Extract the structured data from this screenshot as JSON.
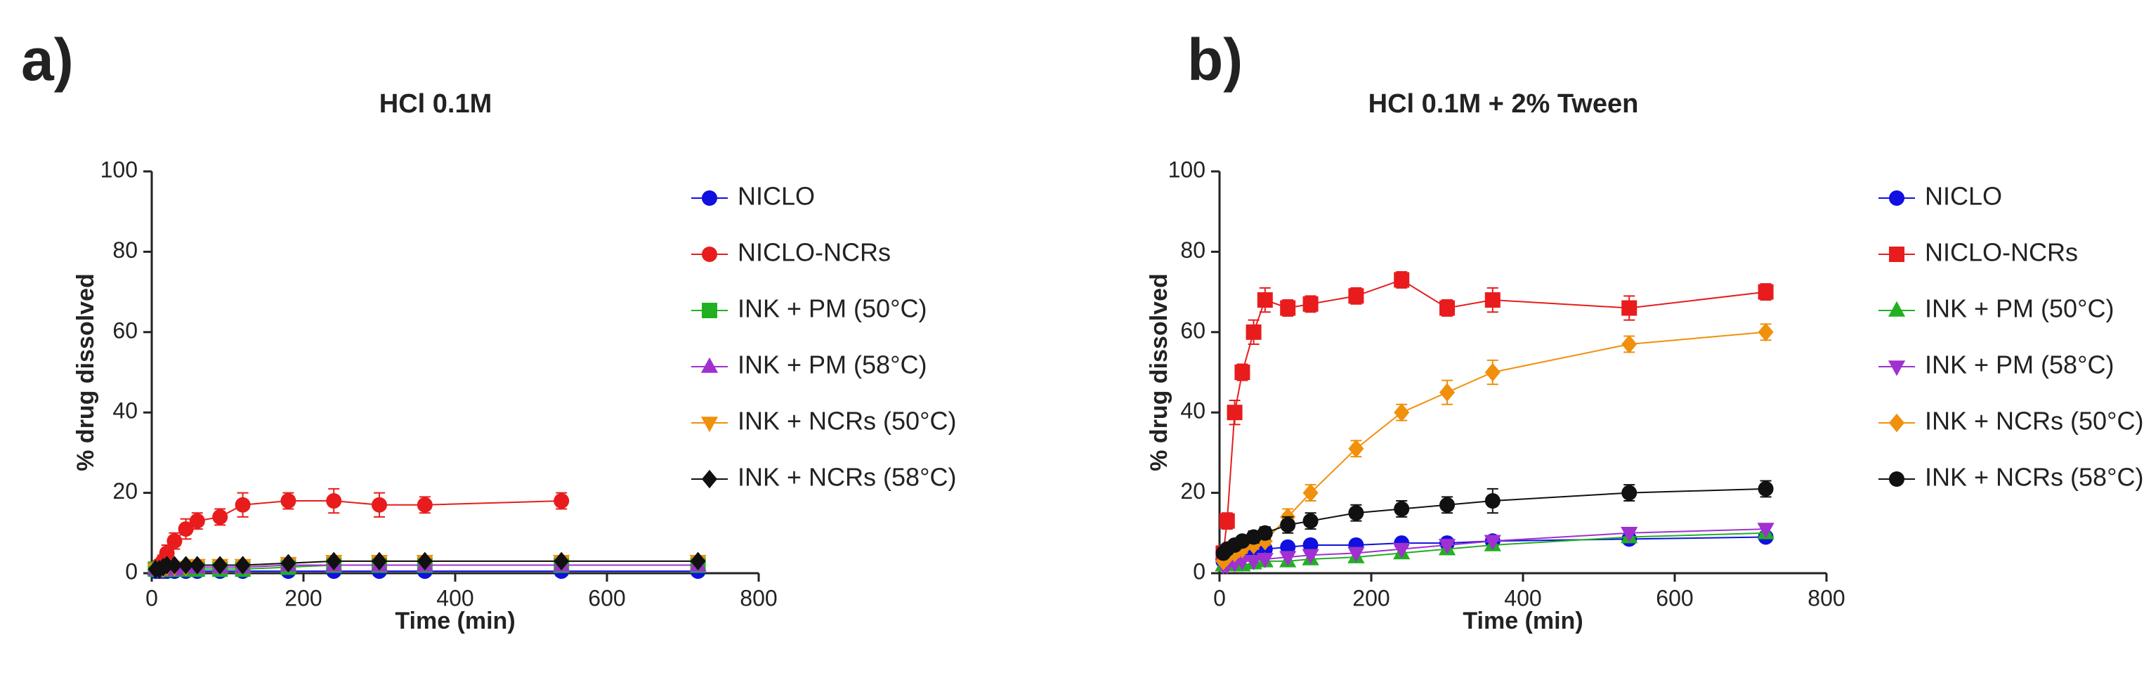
{
  "chart_data": [
    {
      "type": "line",
      "panel_label": "a)",
      "title": "HCl 0.1M",
      "x_label": "Time (min)",
      "y_label": "% drug dissolved",
      "x": [
        5,
        10,
        15,
        20,
        30,
        45,
        60,
        90,
        120,
        180,
        240,
        300,
        360,
        540,
        720
      ],
      "xlim": [
        0,
        800
      ],
      "xticks": [
        0,
        200,
        400,
        600,
        800
      ],
      "ylim": [
        0,
        100
      ],
      "yticks": [
        0,
        20,
        40,
        60,
        80,
        100
      ],
      "series": [
        {
          "name": "NICLO",
          "color": "#1010e0",
          "marker": "circle",
          "values": [
            0.5,
            0.5,
            0.5,
            0.5,
            0.5,
            0.5,
            0.5,
            0.5,
            0.5,
            0.5,
            0.5,
            0.5,
            0.5,
            0.5,
            0.5
          ]
        },
        {
          "name": "NICLO-NCRs",
          "color": "#e81c1c",
          "marker": "circle",
          "values": [
            1,
            2,
            3,
            5,
            8,
            11,
            13,
            14,
            17,
            18,
            18,
            17,
            17,
            18,
            null
          ],
          "errors": [
            0.5,
            1,
            1.5,
            2,
            2,
            2.5,
            2,
            2,
            3,
            2,
            3,
            3,
            2,
            2,
            null
          ]
        },
        {
          "name": "INK + PM (50°C)",
          "color": "#22b022",
          "marker": "square",
          "values": [
            1,
            1,
            1,
            1,
            1,
            1,
            1,
            1,
            1,
            1.5,
            2,
            2,
            2,
            2,
            2
          ]
        },
        {
          "name": "INK + PM (58°C)",
          "color": "#a030d0",
          "marker": "triangle",
          "values": [
            1,
            1,
            1,
            1,
            1,
            1.5,
            1.5,
            1.5,
            1.5,
            2,
            2,
            2,
            2,
            2,
            2
          ]
        },
        {
          "name": "INK + NCRs (50°C)",
          "color": "#f0900c",
          "marker": "triangle-down",
          "values": [
            1,
            1,
            1,
            1.5,
            1.5,
            1.5,
            2,
            2,
            2,
            2.5,
            3,
            3,
            3,
            3,
            3
          ]
        },
        {
          "name": "INK + NCRs (58°C)",
          "color": "#111111",
          "marker": "diamond",
          "values": [
            1,
            1,
            1.5,
            2,
            2,
            2,
            2,
            2,
            2,
            2.5,
            3,
            3,
            3,
            3,
            3
          ]
        }
      ]
    },
    {
      "type": "line",
      "panel_label": "b)",
      "title": "HCl 0.1M + 2% Tween",
      "x_label": "Time (min)",
      "y_label": "% drug dissolved",
      "x": [
        5,
        10,
        20,
        30,
        45,
        60,
        90,
        120,
        180,
        240,
        300,
        360,
        540,
        720
      ],
      "xlim": [
        0,
        800
      ],
      "xticks": [
        0,
        200,
        400,
        600,
        800
      ],
      "ylim": [
        0,
        100
      ],
      "yticks": [
        0,
        20,
        40,
        60,
        80,
        100
      ],
      "series": [
        {
          "name": "NICLO",
          "color": "#1010e0",
          "marker": "circle",
          "values": [
            3,
            4,
            4.5,
            5,
            5.5,
            6,
            6.5,
            7,
            7,
            7.5,
            7.5,
            8,
            8.5,
            9
          ]
        },
        {
          "name": "NICLO-NCRs",
          "color": "#e81c1c",
          "marker": "square",
          "values": [
            5,
            13,
            40,
            50,
            60,
            68,
            66,
            67,
            69,
            73,
            66,
            68,
            66,
            70
          ],
          "errors": [
            1,
            2,
            3,
            2,
            3,
            3,
            2,
            2,
            2,
            2,
            2,
            3,
            3,
            2
          ]
        },
        {
          "name": "INK + PM (50°C)",
          "color": "#22b022",
          "marker": "triangle",
          "values": [
            2,
            2,
            2,
            2,
            2.5,
            3,
            3,
            3.5,
            4,
            5,
            6,
            7,
            9,
            10
          ]
        },
        {
          "name": "INK + PM (58°C)",
          "color": "#a030d0",
          "marker": "triangle-down",
          "values": [
            2,
            2,
            2.5,
            3,
            3,
            3.5,
            4,
            4.5,
            5,
            6,
            7,
            8,
            10,
            11
          ]
        },
        {
          "name": "INK + NCRs (50°C)",
          "color": "#f0900c",
          "marker": "diamond",
          "values": [
            3,
            4,
            5,
            6,
            7,
            8,
            14,
            20,
            31,
            40,
            45,
            50,
            57,
            60
          ],
          "errors": [
            0.5,
            0.5,
            1,
            1,
            1,
            1,
            2,
            2,
            2,
            2,
            3,
            3,
            2,
            2
          ]
        },
        {
          "name": "INK + NCRs (58°C)",
          "color": "#111111",
          "marker": "circle",
          "values": [
            5,
            6,
            7,
            8,
            9,
            10,
            12,
            13,
            15,
            16,
            17,
            18,
            20,
            21
          ],
          "errors": [
            1,
            1,
            1,
            1,
            1.5,
            1.5,
            2,
            2,
            2,
            2,
            2,
            3,
            2,
            2
          ]
        }
      ]
    }
  ]
}
